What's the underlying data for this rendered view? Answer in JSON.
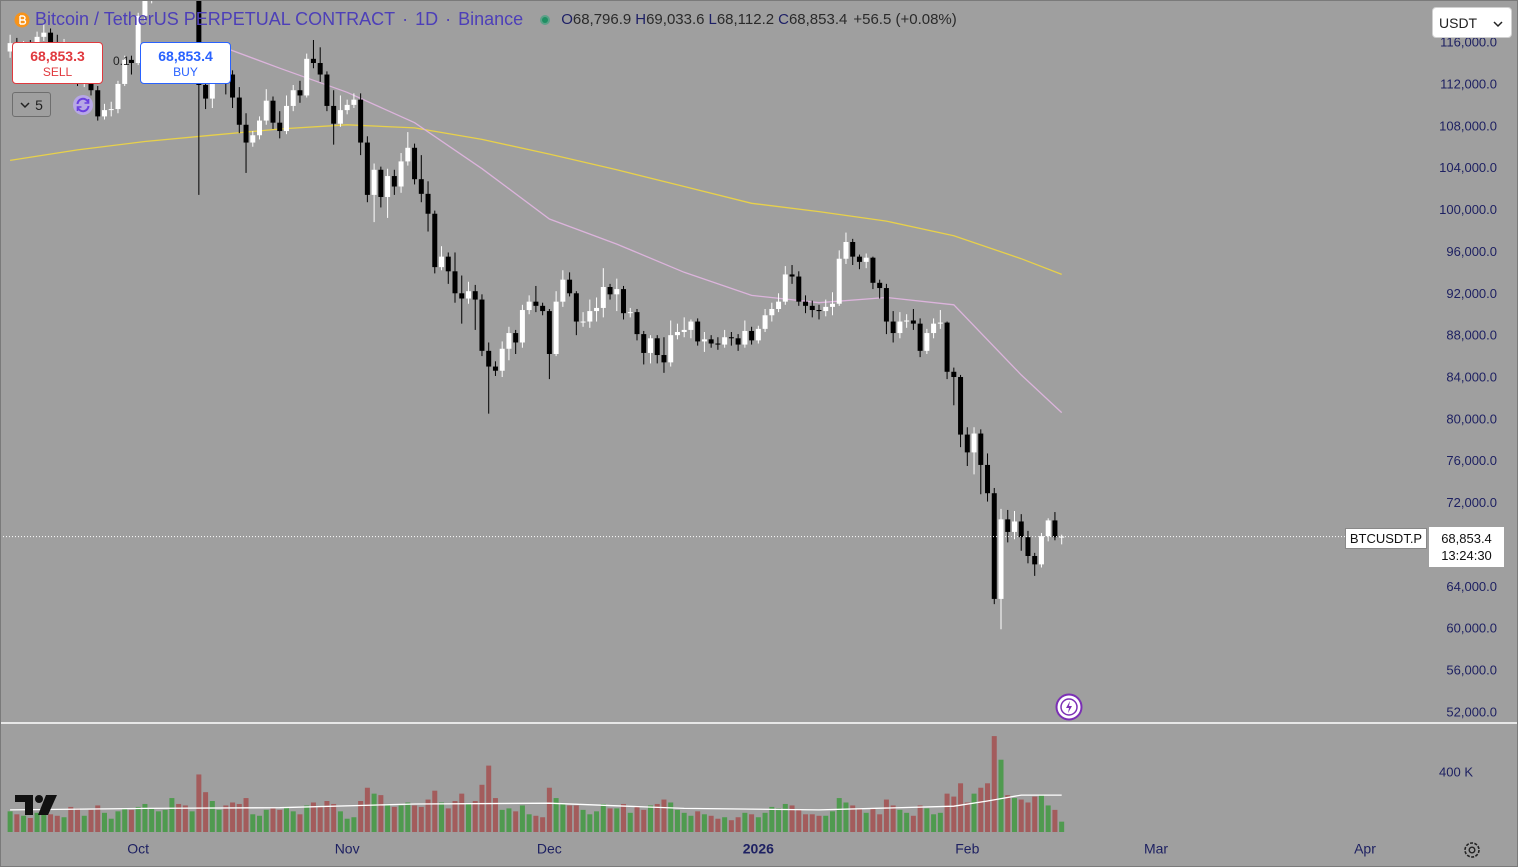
{
  "toolbar": {
    "symbol": "Bitcoin / TetherUS PERPETUAL CONTRACT",
    "separator": "·",
    "interval": "1D",
    "exchange": "Binance",
    "ohlc": [
      {
        "key": "O",
        "value": "68,796.9"
      },
      {
        "key": "H",
        "value": "69,033.6"
      },
      {
        "key": "L",
        "value": "68,112.2"
      },
      {
        "key": "C",
        "value": "68,853.4"
      }
    ],
    "change": "+56.5 (+0.08%)",
    "currency": "USDT"
  },
  "trade_panel": {
    "sell_price": "68,853.3",
    "sell_label": "SELL",
    "buy_price": "68,853.4",
    "buy_label": "BUY",
    "quantity": "0.1",
    "bars": "5"
  },
  "price_tag": {
    "symbol": "BTCUSDT.P",
    "price": "68,853.4",
    "countdown": "13:24:30"
  },
  "chart_data": {
    "type": "candlestick",
    "xlim": [
      -1.5,
      209.9
    ],
    "xticks": [
      {
        "value": 19,
        "label": "Oct"
      },
      {
        "value": 50,
        "label": "Nov"
      },
      {
        "value": 80,
        "label": "Dec"
      },
      {
        "value": 111,
        "label": "2026"
      },
      {
        "value": 142,
        "label": "Feb"
      },
      {
        "value": 170,
        "label": "Mar"
      },
      {
        "value": 201,
        "label": "Apr"
      }
    ],
    "ylim": [
      51045,
      120120
    ],
    "yticks": [
      {
        "value": 52000,
        "label": "52,000.0"
      },
      {
        "value": 56000,
        "label": "56,000.0"
      },
      {
        "value": 60000,
        "label": "60,000.0"
      },
      {
        "value": 64000,
        "label": "64,000.0"
      },
      {
        "value": 68000,
        "label": "68,000.0"
      },
      {
        "value": 72000,
        "label": "72,000.0"
      },
      {
        "value": 76000,
        "label": "76,000.0"
      },
      {
        "value": 80000,
        "label": "80,000.0"
      },
      {
        "value": 84000,
        "label": "84,000.0"
      },
      {
        "value": 88000,
        "label": "88,000.0"
      },
      {
        "value": 92000,
        "label": "92,000.0"
      },
      {
        "value": 96000,
        "label": "96,000.0"
      },
      {
        "value": 100000,
        "label": "100,000.0"
      },
      {
        "value": 104000,
        "label": "104,000.0"
      },
      {
        "value": 108000,
        "label": "108,000.0"
      },
      {
        "value": 112000,
        "label": "112,000.0"
      },
      {
        "value": 116000,
        "label": "116,000.0"
      }
    ],
    "y2lim": [
      0,
      732
    ],
    "y2ticks": [
      {
        "value": 400,
        "label": "400 K"
      }
    ],
    "grid": false,
    "up_color": "#ffffff",
    "down_color": "#000000",
    "candles": {
      "open": [
        115200,
        116000,
        115400,
        115800,
        115300,
        116600,
        117000,
        116000,
        115500,
        115700,
        112700,
        112500,
        113200,
        111500,
        109000,
        109600,
        109700,
        112100,
        114400,
        114100,
        118600,
        120600,
        122300,
        122400,
        123500,
        125000,
        124000,
        121500,
        122500,
        112000,
        110700,
        115000,
        115200,
        113000,
        110800,
        108200,
        106500,
        107200,
        108600,
        110500,
        108400,
        107600,
        110000,
        111500,
        111000,
        114500,
        114100,
        113000,
        110000,
        108300,
        109600,
        110100,
        110600,
        106500,
        101500,
        103900,
        101300,
        103300,
        102300,
        104700,
        106000,
        103000,
        101600,
        99700,
        94600,
        95600,
        94200,
        92100,
        91600,
        92300,
        91500,
        86600,
        85100,
        84700,
        86800,
        88300,
        87400,
        90500,
        91300,
        90900,
        90400,
        86300,
        91300,
        93400,
        92100,
        89400,
        89400,
        90400,
        90700,
        92700,
        92000,
        92500,
        90200,
        90300,
        88200,
        86400,
        87800,
        86200,
        85500,
        88100,
        88400,
        88600,
        89400,
        87500,
        87700,
        87300,
        87200,
        87900,
        87800,
        87200,
        88500,
        87600,
        88700,
        90000,
        90600,
        91300,
        93900,
        93700,
        91300,
        90900,
        90500,
        90400,
        90800,
        91100,
        95400,
        97000,
        95600,
        95100,
        95500,
        93100,
        92600,
        89400,
        88300,
        89400,
        89500,
        89200,
        86600,
        88300,
        89200,
        89300,
        84600,
        84100,
        78600,
        76900,
        78700,
        75700,
        73000,
        62900,
        70500,
        69300,
        70300,
        68800,
        67000,
        66200,
        68900,
        70400,
        68796.9
      ],
      "high": [
        116800,
        116500,
        116200,
        116300,
        117100,
        117900,
        117400,
        116800,
        116400,
        115900,
        113500,
        113700,
        113500,
        111900,
        110200,
        110400,
        112400,
        114800,
        114800,
        118900,
        121000,
        123300,
        122900,
        124200,
        126200,
        125300,
        124300,
        123500,
        122600,
        113500,
        115500,
        115900,
        115600,
        113400,
        111800,
        109300,
        107600,
        109000,
        111600,
        110900,
        109500,
        111000,
        112000,
        112400,
        115000,
        116300,
        115600,
        113300,
        111500,
        111000,
        110600,
        111200,
        111200,
        107100,
        104500,
        104200,
        104000,
        103900,
        105500,
        107500,
        106400,
        105300,
        102800,
        100000,
        96600,
        96000,
        96000,
        93800,
        93200,
        92900,
        92000,
        87400,
        85600,
        87500,
        88900,
        88600,
        91000,
        91900,
        92800,
        91200,
        90600,
        92300,
        94300,
        94100,
        92300,
        90300,
        91500,
        91700,
        94500,
        93000,
        93500,
        92800,
        90700,
        90600,
        88500,
        88100,
        88100,
        87900,
        89500,
        89200,
        89800,
        89600,
        89700,
        88400,
        88100,
        87900,
        88600,
        88400,
        88200,
        89500,
        88900,
        89000,
        90600,
        91200,
        92100,
        94700,
        94800,
        94200,
        91900,
        91400,
        91000,
        91500,
        92200,
        96200,
        97900,
        97300,
        95800,
        95900,
        95600,
        93400,
        93000,
        90400,
        90300,
        90100,
        90600,
        89700,
        88700,
        89700,
        90500,
        89400,
        85000,
        84300,
        79300,
        79300,
        79100,
        76800,
        73500,
        71500,
        71400,
        71300,
        71000,
        69400,
        67300,
        69200,
        70600,
        71200,
        69033.6
      ],
      "low": [
        114600,
        115000,
        115000,
        114800,
        115100,
        116200,
        115500,
        115000,
        115200,
        112400,
        111900,
        111800,
        111000,
        108600,
        108700,
        109000,
        109300,
        111900,
        113000,
        113900,
        118100,
        119800,
        121000,
        122300,
        123100,
        123300,
        120700,
        121100,
        101500,
        109700,
        109800,
        114000,
        111100,
        109800,
        107400,
        103600,
        106100,
        106800,
        108200,
        107800,
        106900,
        107300,
        109500,
        110300,
        110800,
        113600,
        112300,
        109500,
        106300,
        108000,
        109200,
        109800,
        105300,
        100800,
        98900,
        100300,
        99300,
        101500,
        101700,
        104300,
        102500,
        100800,
        98000,
        94000,
        94300,
        93000,
        91200,
        89200,
        91100,
        88600,
        86100,
        80600,
        84200,
        84100,
        85700,
        86300,
        86900,
        90100,
        90300,
        90000,
        83900,
        86100,
        90800,
        91800,
        88100,
        88900,
        88800,
        89400,
        89800,
        91500,
        90400,
        89600,
        89800,
        87600,
        85300,
        85400,
        85400,
        84500,
        85100,
        87700,
        87900,
        87800,
        87100,
        86500,
        86900,
        86700,
        86900,
        87100,
        86600,
        86900,
        87200,
        87300,
        88400,
        89400,
        90300,
        91000,
        93000,
        90900,
        90200,
        89800,
        89600,
        89900,
        90000,
        90900,
        94900,
        94800,
        94400,
        94500,
        92500,
        91600,
        88200,
        87400,
        87800,
        88800,
        88600,
        86000,
        86300,
        87800,
        88700,
        83900,
        81400,
        77400,
        75600,
        74800,
        72900,
        72200,
        62400,
        60000,
        68300,
        68600,
        67500,
        66300,
        65100,
        65900,
        68400,
        68500,
        68112.2
      ],
      "close": [
        116000,
        115400,
        115800,
        115300,
        116600,
        117000,
        116000,
        115500,
        115700,
        112700,
        112500,
        113200,
        111500,
        109000,
        109600,
        109700,
        112100,
        114400,
        114100,
        118600,
        120600,
        122300,
        122400,
        123500,
        125000,
        124000,
        121500,
        122500,
        112000,
        110700,
        115000,
        115200,
        113000,
        110800,
        108200,
        106500,
        107200,
        108600,
        110500,
        108400,
        107600,
        110000,
        111500,
        111000,
        114500,
        114100,
        113000,
        110000,
        108300,
        109600,
        110100,
        110600,
        106500,
        101500,
        103900,
        101300,
        103300,
        102300,
        104700,
        106000,
        103000,
        101600,
        99700,
        94600,
        95600,
        94200,
        92100,
        91600,
        92300,
        91500,
        86600,
        85100,
        84700,
        86800,
        88300,
        87400,
        90500,
        91300,
        90900,
        90400,
        86300,
        91300,
        93400,
        92100,
        89400,
        89400,
        90400,
        90700,
        92700,
        92000,
        92500,
        90200,
        90300,
        88200,
        86400,
        87800,
        86200,
        85500,
        88100,
        88400,
        88600,
        89400,
        87500,
        87700,
        87300,
        87200,
        87900,
        87800,
        87200,
        88500,
        87600,
        88700,
        90000,
        90600,
        91300,
        93900,
        93700,
        91300,
        90900,
        90500,
        90400,
        90800,
        91100,
        95400,
        97000,
        95600,
        95100,
        95500,
        93100,
        92600,
        89400,
        88300,
        89400,
        89500,
        89200,
        86600,
        88300,
        89200,
        89300,
        84600,
        84100,
        78600,
        76900,
        78700,
        75700,
        73000,
        62900,
        70500,
        69300,
        70300,
        68800,
        67000,
        66200,
        68900,
        70400,
        68796.9,
        68853.4
      ]
    },
    "volume": {
      "up_color": "#4f9a4f",
      "down_color": "#a35c5c",
      "values": [
        140,
        120,
        110,
        95,
        130,
        150,
        120,
        110,
        100,
        170,
        160,
        110,
        150,
        180,
        130,
        90,
        140,
        160,
        150,
        170,
        190,
        160,
        140,
        150,
        230,
        190,
        180,
        140,
        390,
        270,
        210,
        150,
        180,
        200,
        190,
        230,
        120,
        110,
        150,
        160,
        150,
        170,
        140,
        120,
        180,
        200,
        170,
        210,
        190,
        140,
        90,
        100,
        210,
        300,
        260,
        250,
        190,
        170,
        180,
        200,
        180,
        170,
        220,
        280,
        200,
        160,
        210,
        260,
        190,
        210,
        320,
        450,
        230,
        150,
        160,
        140,
        180,
        120,
        110,
        100,
        300,
        230,
        190,
        180,
        180,
        150,
        120,
        140,
        190,
        160,
        160,
        190,
        130,
        170,
        150,
        180,
        190,
        220,
        200,
        150,
        130,
        110,
        140,
        120,
        110,
        90,
        100,
        80,
        100,
        130,
        120,
        100,
        130,
        170,
        160,
        190,
        180,
        150,
        120,
        120,
        110,
        110,
        140,
        230,
        200,
        180,
        160,
        130,
        160,
        120,
        220,
        180,
        150,
        130,
        110,
        180,
        160,
        120,
        130,
        260,
        240,
        330,
        200,
        260,
        300,
        330,
        650,
        490,
        250,
        230,
        220,
        200,
        240,
        250,
        180,
        150,
        70
      ]
    },
    "moving_averages": [
      {
        "color": "#e8d14a",
        "x": [
          0,
          10,
          20,
          30,
          40,
          50,
          60,
          70,
          80,
          90,
          100,
          110,
          120,
          130,
          140,
          150,
          156
        ],
        "values": [
          104800,
          105800,
          106600,
          107200,
          107800,
          108200,
          107900,
          106800,
          105400,
          103900,
          102300,
          100700,
          99900,
          99000,
          97600,
          95400,
          93900
        ]
      },
      {
        "color": "#dcb4dc",
        "x": [
          30,
          40,
          50,
          60,
          70,
          80,
          90,
          100,
          110,
          120,
          130,
          140,
          150,
          156
        ],
        "values": [
          116000,
          113600,
          111300,
          108400,
          104000,
          99200,
          96800,
          94100,
          91900,
          91200,
          91700,
          91000,
          84300,
          80700
        ]
      },
      {
        "color": "#ffffff",
        "axis": "y2",
        "x": [
          0,
          20,
          40,
          60,
          80,
          100,
          120,
          140,
          145,
          150,
          156
        ],
        "values": [
          150,
          160,
          165,
          190,
          195,
          160,
          150,
          175,
          210,
          250,
          250
        ]
      }
    ]
  }
}
